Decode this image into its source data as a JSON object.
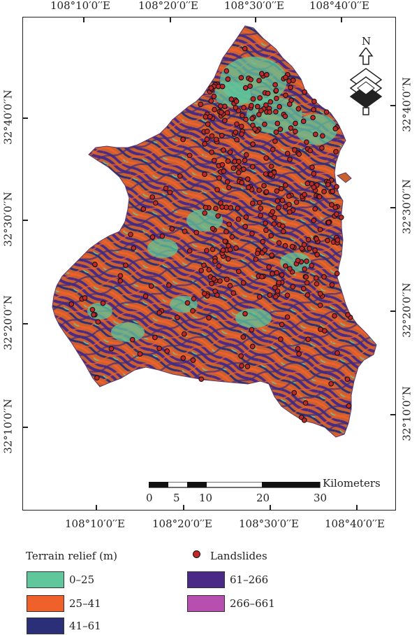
{
  "map": {
    "top_longitudes": [
      "108°10′0′′E",
      "108°20′0′′E",
      "108°30′0′′E",
      "108°40′0′′E"
    ],
    "bottom_longitudes": [
      "108°10′0′′E",
      "108°20′0′′E",
      "108°30′0′′E",
      "108°40′0′′E"
    ],
    "left_latitudes": [
      "32°40′0′′N",
      "32°30′0′′N",
      "32°20′0′′N",
      "32°10′0′′N"
    ],
    "right_latitudes": [
      "32°40′0′′N",
      "32°30′0′′N",
      "32°20′0′′N",
      "32°10′0′′N"
    ],
    "north_label": "N",
    "scale": {
      "unit": "Kilometers",
      "ticks": [
        "0",
        "5",
        "10",
        "20",
        "30"
      ]
    }
  },
  "legend": {
    "title": "Terrain relief (m)",
    "classes": [
      {
        "label": "0–25",
        "color": "#5fc79b"
      },
      {
        "label": "25–41",
        "color": "#f0602a"
      },
      {
        "label": "41–61",
        "color": "#2b2f78"
      },
      {
        "label": "61–266",
        "color": "#4a2a86"
      },
      {
        "label": "266–661",
        "color": "#b74fb0"
      }
    ],
    "points_label": "Landslides",
    "points_color": "#c0282a"
  }
}
